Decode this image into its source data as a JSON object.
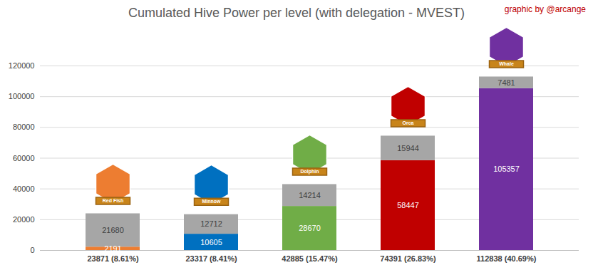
{
  "chart_data": {
    "type": "bar",
    "title": "Cumulated Hive Power per level (with delegation - MVEST)",
    "annotations": [
      "graphic by @arcange"
    ],
    "categories": [
      "23871 (8.61%)",
      "23317 (8.41%)",
      "42885 (15.47%)",
      "74391 (26.83%)",
      "112838 (40.69%)"
    ],
    "levels": [
      "Red Fish",
      "Minnow",
      "Dolphin",
      "Orca",
      "Whale"
    ],
    "series": [
      {
        "colors": [
          "#ed7d31",
          "#0070c0",
          "#70ad47",
          "#c00000",
          "#7030a0"
        ],
        "values": [
          2191,
          10605,
          28670,
          58447,
          105357
        ]
      },
      {
        "color": "#a6a6a6",
        "values": [
          21680,
          12712,
          14214,
          15944,
          7481
        ]
      }
    ],
    "stacked": true,
    "data_labels": true,
    "ylim": [
      0,
      120000
    ],
    "yticks": [
      0,
      20000,
      40000,
      60000,
      80000,
      100000,
      120000
    ],
    "grid": true
  }
}
